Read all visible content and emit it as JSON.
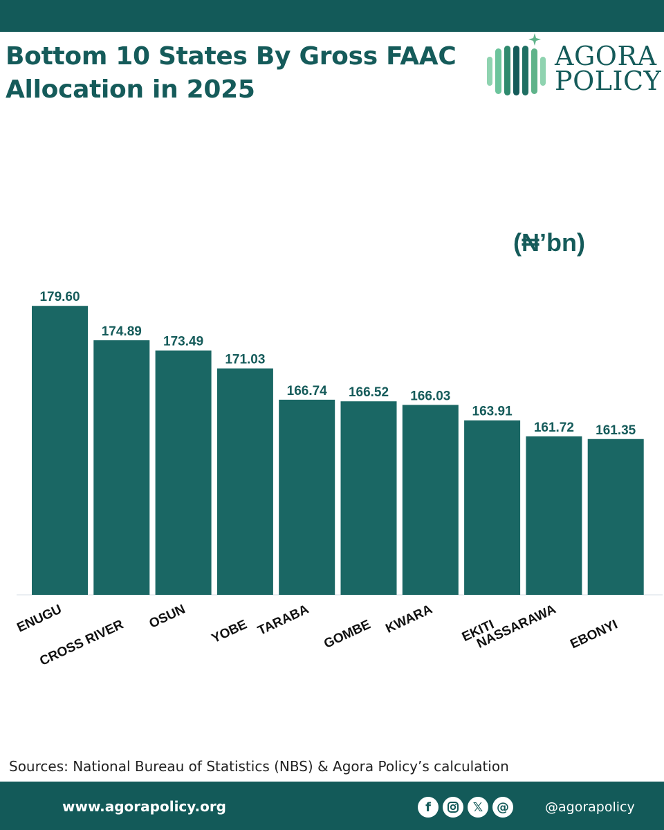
{
  "title": "Bottom 10 States By Gross FAAC Allocation in 2025",
  "logo": {
    "line1": "AGORA",
    "line2": "POLICY"
  },
  "unit_label": "(₦’bn)",
  "chart_data": {
    "type": "bar",
    "title": "Bottom 10 States By Gross FAAC Allocation in 2025",
    "xlabel": "",
    "ylabel": "(₦’bn)",
    "categories": [
      "ENUGU",
      "CROSS RIVER",
      "OSUN",
      "YOBE",
      "TARABA",
      "GOMBE",
      "KWARA",
      "EKITI",
      "NASSARAWA",
      "EBONYI"
    ],
    "values": [
      179.6,
      174.89,
      173.49,
      171.03,
      166.74,
      166.52,
      166.03,
      163.91,
      161.72,
      161.35
    ],
    "value_labels": [
      "179.60",
      "174.89",
      "173.49",
      "171.03",
      "166.74",
      "166.52",
      "166.03",
      "163.91",
      "161.72",
      "161.35"
    ],
    "ylim": [
      140,
      180
    ],
    "grid": false,
    "legend": "none",
    "bar_color": "#1a6764"
  },
  "sources": "Sources: National Bureau of Statistics (NBS) & Agora Policy’s calculation",
  "footer": {
    "website": "www.agorapolicy.org",
    "handle": "@agorapolicy",
    "social_icons": [
      "facebook-icon",
      "instagram-icon",
      "x-icon",
      "threads-icon"
    ]
  },
  "colors": {
    "brand": "#135a59",
    "bar": "#1a6764",
    "text": "#155b5a"
  }
}
